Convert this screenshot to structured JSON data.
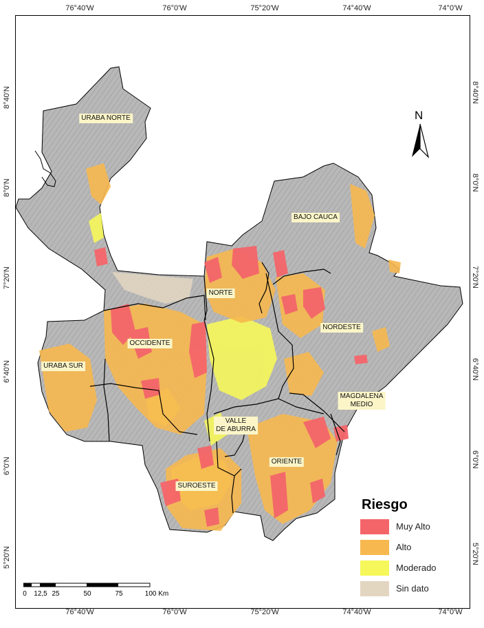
{
  "graticule": {
    "top_lon": [
      "76°40'W",
      "76°0'W",
      "75°20'W",
      "74°40'W",
      "74°0'W"
    ],
    "bottom_lon": [
      "76°40'W",
      "76°0'W",
      "75°20'W",
      "74°40'W",
      "74°0'W"
    ],
    "left_lat": [
      "8°40'N",
      "8°0'N",
      "7°20'N",
      "6°40'N",
      "6°0'N",
      "5°20'N"
    ],
    "right_lat": [
      "8°40'N",
      "8°0'N",
      "7°20'N",
      "6°40'N",
      "6°0'N",
      "5°20'N"
    ]
  },
  "regions": {
    "uraba_norte": "URABA NORTE",
    "bajo_cauca": "BAJO CAUCA",
    "norte": "NORTE",
    "nordeste": "NORDESTE",
    "occidente": "OCCIDENTE",
    "uraba_sur": "URABA SUR",
    "magdalena_medio_1": "MAGDALENA",
    "magdalena_medio_2": "MEDIO",
    "valle_aburra_1": "VALLE",
    "valle_aburra_2": "DE ABURRA",
    "oriente": "ORIENTE",
    "suroeste": "SUROESTE"
  },
  "legend": {
    "title": "Riesgo",
    "items": [
      {
        "label": "Muy Alto",
        "color": "#f4656a"
      },
      {
        "label": "Alto",
        "color": "#f7b84f"
      },
      {
        "label": "Moderado",
        "color": "#f6f75a"
      },
      {
        "label": "Sin dato",
        "color": "#e3d6c1"
      }
    ]
  },
  "north_arrow": {
    "letter": "N",
    "icon": "north-arrow-icon"
  },
  "scale_bar": {
    "ticks": [
      "0",
      "12,5",
      "25",
      "50",
      "75",
      "100 Km"
    ]
  },
  "colors": {
    "terrain": "#b9b9b9",
    "muy_alto": "#f4656a",
    "alto": "#f7b84f",
    "moderado": "#f6f75a",
    "sin_dato": "#e3d6c1",
    "label_bg": "#fbf5c8"
  }
}
